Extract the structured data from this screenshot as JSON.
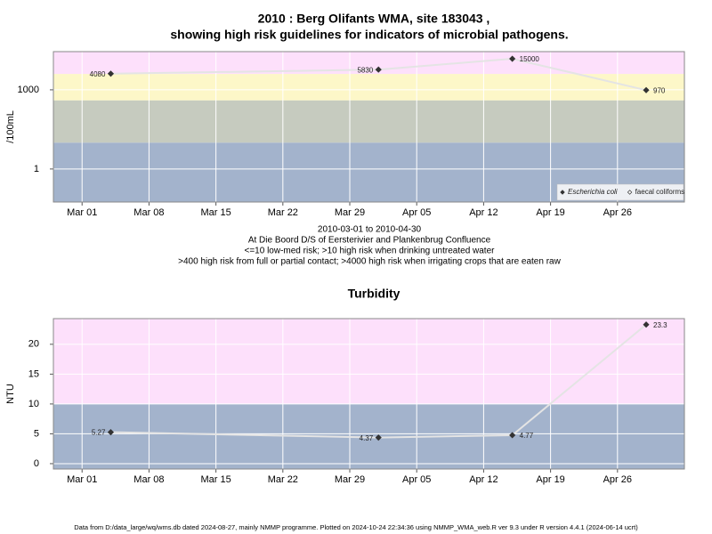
{
  "chart_data": [
    {
      "type": "line",
      "title": "2010 : Berg Olifants WMA, site 183043 ,",
      "subtitle": "showing high risk guidelines for indicators of microbial pathogens.",
      "notes": [
        "2010-03-01 to 2010-04-30",
        "At Die Boord D/S of Eersterivier and Plankenbrug Confluence",
        "<=10 low-med risk; >10 high risk when drinking untreated water",
        ">400 high risk from full or partial contact; >4000 high risk when irrigating crops that are eaten raw"
      ],
      "y_label": "/100mL",
      "log_scale": true,
      "grid": true,
      "legend": "bottom-right",
      "x": [
        "2010-03-04",
        "2010-04-01",
        "2010-04-15",
        "2010-04-29"
      ],
      "series": [
        {
          "name": "Escherichia coli",
          "color": "#333333",
          "filled": true,
          "values": [
            4080,
            5830,
            15000,
            970
          ]
        },
        {
          "name": "faecal coliforms",
          "color": "#333333",
          "filled": false,
          "values": [
            null,
            null,
            null,
            null
          ]
        }
      ],
      "band_edges": [
        10,
        400,
        4000
      ],
      "band_colors": [
        "#a3b3cc",
        "#c6cbbf",
        "#fdf7c8",
        "#fde0fb"
      ],
      "xlim": [
        "2010-02-26",
        "2010-05-03"
      ],
      "xticks": [
        {
          "value": "2010-03-01",
          "label": "Mar 01"
        },
        {
          "value": "2010-03-08",
          "label": "Mar 08"
        },
        {
          "value": "2010-03-15",
          "label": "Mar 15"
        },
        {
          "value": "2010-03-22",
          "label": "Mar 22"
        },
        {
          "value": "2010-03-29",
          "label": "Mar 29"
        },
        {
          "value": "2010-04-05",
          "label": "Apr 05"
        },
        {
          "value": "2010-04-12",
          "label": "Apr 12"
        },
        {
          "value": "2010-04-19",
          "label": "Apr 19"
        },
        {
          "value": "2010-04-26",
          "label": "Apr 26"
        }
      ],
      "ylim": [
        0.056,
        28000
      ],
      "yticks": [
        1,
        1000
      ]
    },
    {
      "type": "line",
      "title": "Turbidity",
      "y_label": "NTU",
      "log_scale": false,
      "grid": true,
      "x": [
        "2010-03-04",
        "2010-04-01",
        "2010-04-15",
        "2010-04-29"
      ],
      "series": [
        {
          "color": "#333333",
          "filled": true,
          "values": [
            5.27,
            4.37,
            4.77,
            23.3
          ]
        }
      ],
      "band_edges": [
        10
      ],
      "band_colors": [
        "#a3b3cc",
        "#fde0fb"
      ],
      "xlim": [
        "2010-02-26",
        "2010-05-03"
      ],
      "xticks": [
        {
          "value": "2010-03-01",
          "label": "Mar 01"
        },
        {
          "value": "2010-03-08",
          "label": "Mar 08"
        },
        {
          "value": "2010-03-15",
          "label": "Mar 15"
        },
        {
          "value": "2010-03-22",
          "label": "Mar 22"
        },
        {
          "value": "2010-03-29",
          "label": "Mar 29"
        },
        {
          "value": "2010-04-05",
          "label": "Apr 05"
        },
        {
          "value": "2010-04-12",
          "label": "Apr 12"
        },
        {
          "value": "2010-04-19",
          "label": "Apr 19"
        },
        {
          "value": "2010-04-26",
          "label": "Apr 26"
        }
      ],
      "ylim": [
        -0.9,
        24.3
      ],
      "yticks": [
        0,
        5,
        10,
        15,
        20
      ]
    }
  ],
  "footer": "Data from D:/data_large/wq/wms.db dated 2024-08-27, mainly NMMP programme. Plotted on 2024-10-24 22:34:36 using NMMP_WMA_web.R ver 9.3 under R version 4.4.1 (2024-06-14 ucrt)"
}
